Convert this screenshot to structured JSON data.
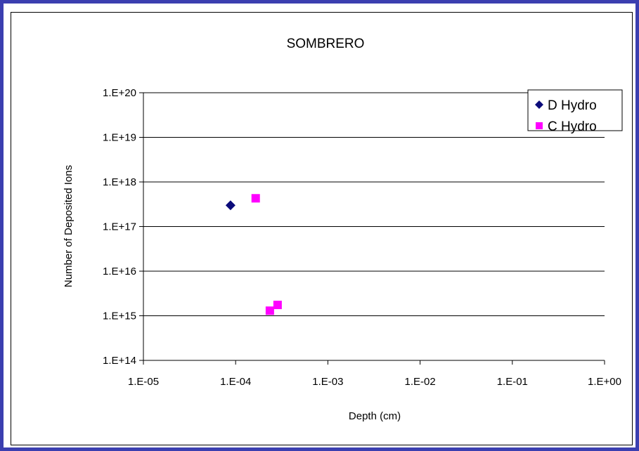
{
  "chart_data": {
    "type": "scatter",
    "title": "SOMBRERO",
    "xlabel": "Depth (cm)",
    "ylabel": "Number of Deposited Ions",
    "x_scale": "log",
    "y_scale": "log",
    "xlim": [
      1e-05,
      1
    ],
    "ylim": [
      100000000000000.0,
      1e+20
    ],
    "x_tick_labels": [
      "1.E-05",
      "1.E-04",
      "1.E-03",
      "1.E-02",
      "1.E-01",
      "1.E+00"
    ],
    "y_tick_labels": [
      "1.E+14",
      "1.E+15",
      "1.E+16",
      "1.E+17",
      "1.E+18",
      "1.E+19",
      "1.E+20"
    ],
    "grid": "horizontal",
    "legend_position": "top-right",
    "series": [
      {
        "name": "D Hydro",
        "marker": "diamond",
        "color": "#0b0b7a",
        "points": [
          {
            "x": 8.8e-05,
            "y": 3e+17
          }
        ]
      },
      {
        "name": "C Hydro",
        "marker": "square",
        "color": "#ff00ff",
        "points": [
          {
            "x": 0.000165,
            "y": 4.3e+17
          },
          {
            "x": 0.000235,
            "y": 1300000000000000.0
          },
          {
            "x": 0.000285,
            "y": 1750000000000000.0
          }
        ]
      }
    ]
  }
}
